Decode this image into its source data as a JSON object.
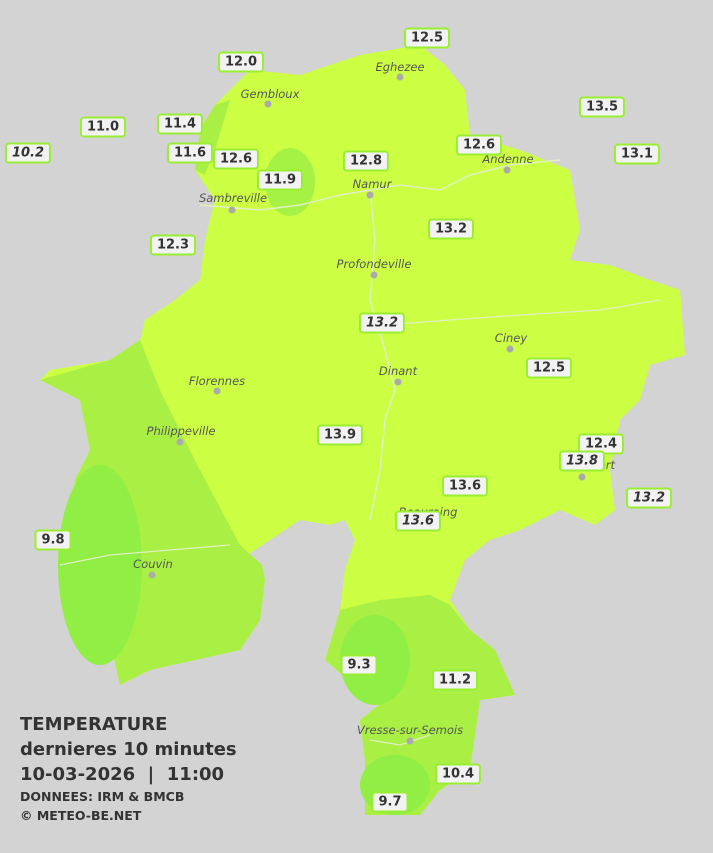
{
  "legend": {
    "title": "TEMPERATURE",
    "subtitle": "dernieres 10 minutes",
    "datetime": "10-03-2026  |  11:00",
    "source": "DONNEES: IRM & BMCB",
    "copyright": "© METEO-BE.NET"
  },
  "cities": [
    "Eghezee",
    "Gembloux",
    "Andenne",
    "Namur",
    "Sambreville",
    "Profondeville",
    "Ciney",
    "Dinant",
    "Florennes",
    "Philippeville",
    "Rochefort",
    "Beauraing",
    "Couvin",
    "Vresse-sur-Semois"
  ],
  "readings": [
    "12.5",
    "12.0",
    "13.5",
    "11.0",
    "11.4",
    "10.2",
    "11.6",
    "12.6",
    "12.6",
    "13.1",
    "12.8",
    "11.9",
    "12.3",
    "13.2",
    "13.2",
    "12.5",
    "13.9",
    "12.4",
    "13.8",
    "13.2",
    "13.6",
    "13.6",
    "9.8",
    "9.3",
    "11.2",
    "10.4",
    "9.7"
  ]
}
